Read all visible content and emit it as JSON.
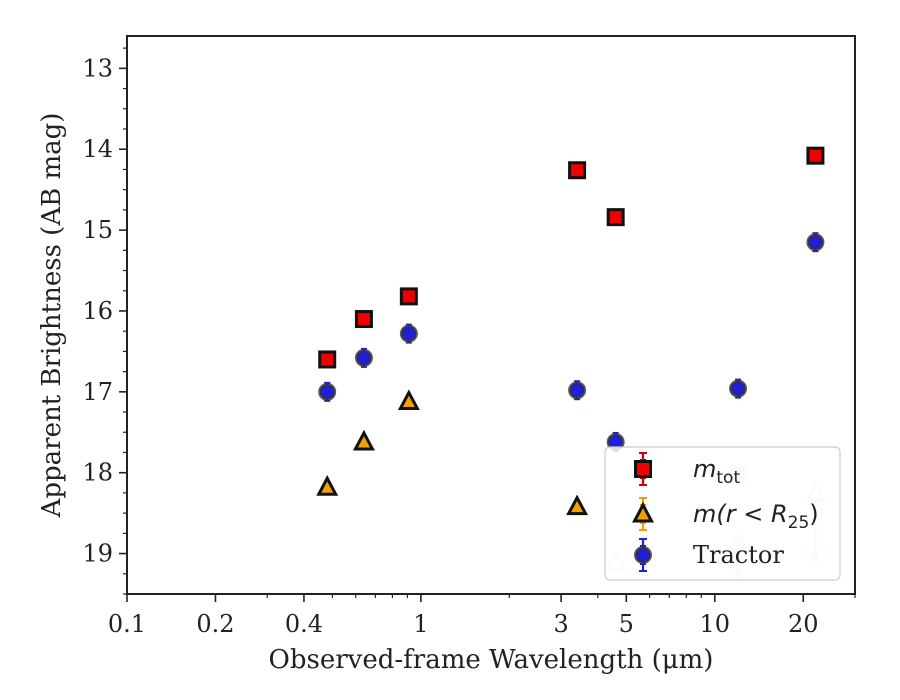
{
  "chart_data": {
    "type": "scatter",
    "title": "",
    "xlabel": "Observed-frame Wavelength (μm)",
    "ylabel": "Apparent Brightness (AB mag)",
    "xscale": "log",
    "xlim": [
      0.1,
      30
    ],
    "ylim": [
      19.5,
      12.6
    ],
    "y_inverted": true,
    "grid": false,
    "legend_position": "bottom-right",
    "xticks": [
      {
        "value": 0.1,
        "label": "0.1"
      },
      {
        "value": 0.2,
        "label": "0.2"
      },
      {
        "value": 0.4,
        "label": "0.4"
      },
      {
        "value": 1,
        "label": "1"
      },
      {
        "value": 3,
        "label": "3"
      },
      {
        "value": 5,
        "label": "5"
      },
      {
        "value": 10,
        "label": "10"
      },
      {
        "value": 20,
        "label": "20"
      }
    ],
    "yticks": [
      {
        "value": 13,
        "label": "13"
      },
      {
        "value": 14,
        "label": "14"
      },
      {
        "value": 15,
        "label": "15"
      },
      {
        "value": 16,
        "label": "16"
      },
      {
        "value": 17,
        "label": "17"
      },
      {
        "value": 18,
        "label": "18"
      },
      {
        "value": 19,
        "label": "19"
      }
    ],
    "series": [
      {
        "key": "mtot",
        "name": "m_tot",
        "marker": "square",
        "color": "#ee0000",
        "errcolor": "#cc0000",
        "points": [
          {
            "x": 0.48,
            "y": 16.6
          },
          {
            "x": 0.64,
            "y": 16.1
          },
          {
            "x": 0.91,
            "y": 15.82
          },
          {
            "x": 3.4,
            "y": 14.26
          },
          {
            "x": 4.6,
            "y": 14.84
          },
          {
            "x": 22,
            "y": 14.08
          }
        ],
        "faded_points": [
          {
            "x": 12,
            "y": 18.02
          }
        ]
      },
      {
        "key": "mr25",
        "name": "m(r < R25)",
        "marker": "triangle",
        "color": "#f2a000",
        "errcolor": "#f2a000",
        "points": [
          {
            "x": 0.48,
            "y": 18.18
          },
          {
            "x": 0.64,
            "y": 17.62
          },
          {
            "x": 0.91,
            "y": 17.12
          },
          {
            "x": 3.4,
            "y": 18.42
          }
        ],
        "faded_points": [
          {
            "x": 4.6,
            "y": 19.1
          },
          {
            "x": 12,
            "y": 18.86
          },
          {
            "x": 22,
            "y": 18.26
          }
        ]
      },
      {
        "key": "tractor",
        "name": "Tractor",
        "marker": "circle",
        "color": "#1f1fd6",
        "errcolor": "#1f1fd6",
        "points": [
          {
            "x": 0.48,
            "y": 17.0
          },
          {
            "x": 0.64,
            "y": 16.58
          },
          {
            "x": 0.91,
            "y": 16.28
          },
          {
            "x": 3.4,
            "y": 16.98
          },
          {
            "x": 4.6,
            "y": 17.62
          },
          {
            "x": 12,
            "y": 16.96
          },
          {
            "x": 22,
            "y": 15.15
          }
        ],
        "faded_points": []
      }
    ],
    "upper_limits": [
      {
        "x": 12,
        "y_from": 18.8,
        "y_to": 19.3,
        "color": "#f6c97a"
      },
      {
        "x": 22,
        "y_from": 18.3,
        "y_to": 19.1,
        "color": "#f6c97a"
      }
    ]
  },
  "legend": {
    "entries": [
      {
        "key": "mtot",
        "main": "m",
        "sub": "tot",
        "rest": ""
      },
      {
        "key": "mr25",
        "main": "m(r < R",
        "sub": "25",
        "rest": ")"
      },
      {
        "key": "tractor",
        "main": "Tractor",
        "sub": "",
        "rest": ""
      }
    ]
  }
}
